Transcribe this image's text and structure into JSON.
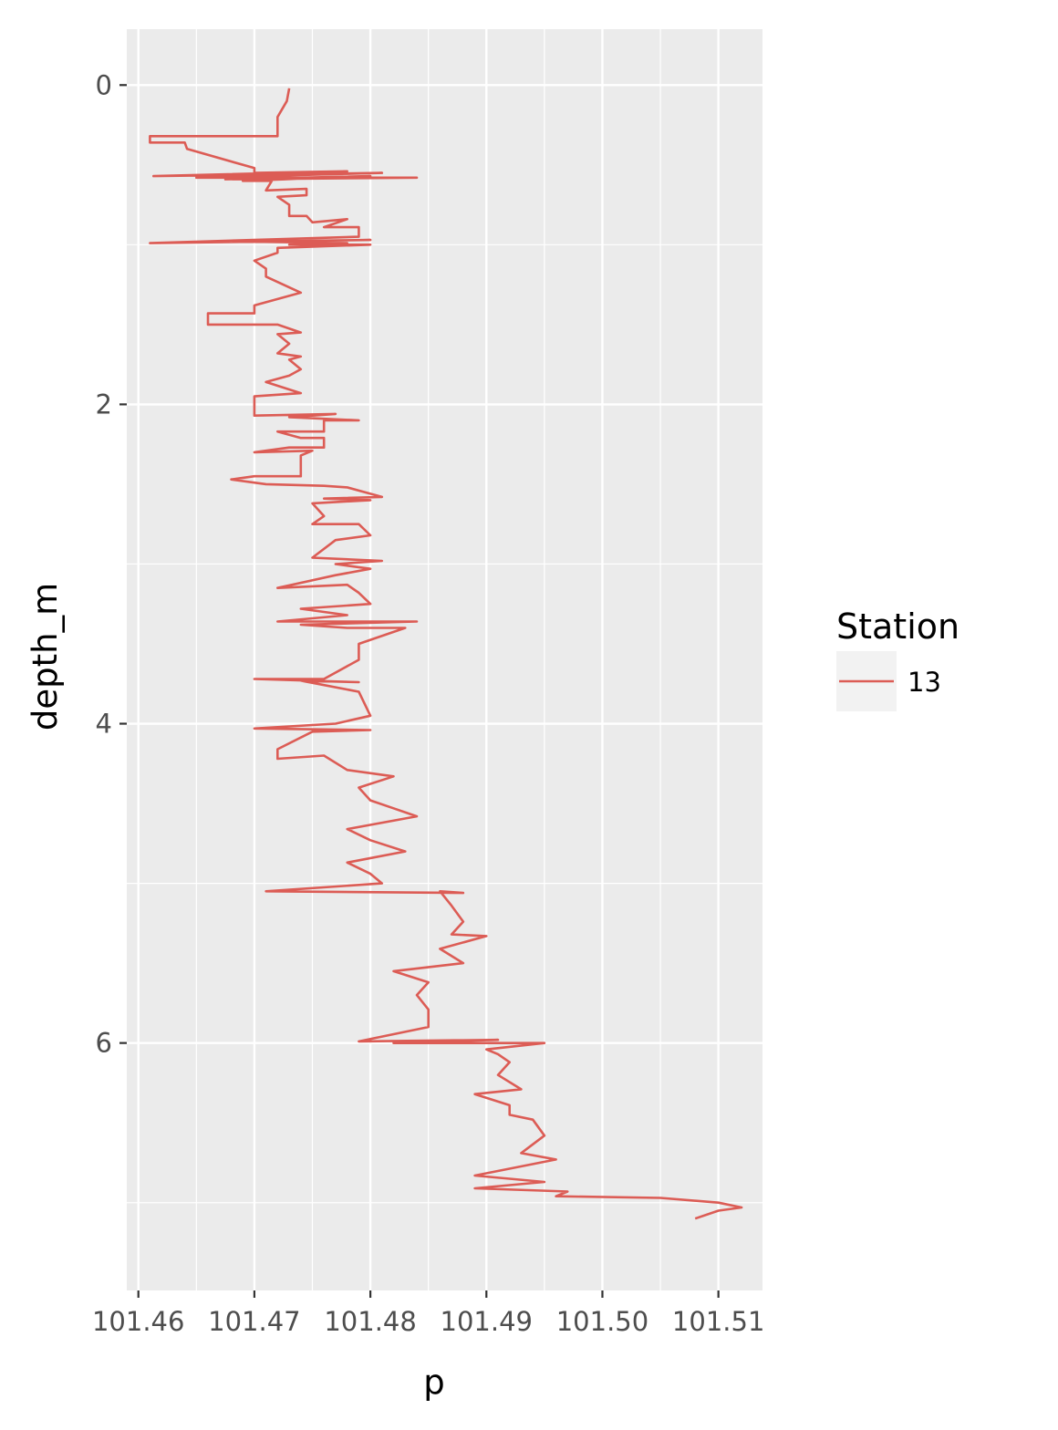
{
  "chart_data": {
    "type": "line",
    "title": "",
    "xlabel": "p",
    "ylabel": "depth_m",
    "xlim": [
      101.459,
      101.5138
    ],
    "ylim": [
      7.55,
      -0.35
    ],
    "y_reversed": true,
    "xticks": [
      101.46,
      101.47,
      101.48,
      101.49,
      101.5,
      101.51
    ],
    "xtick_labels": [
      "101.46",
      "101.47",
      "101.48",
      "101.49",
      "101.50",
      "101.51"
    ],
    "yticks": [
      0,
      2,
      4,
      6
    ],
    "ytick_labels": [
      "0",
      "2",
      "4",
      "6"
    ],
    "grid": true,
    "legend": {
      "title": "Station",
      "position": "right"
    },
    "series": [
      {
        "name": "13",
        "color": "#dc5c55",
        "points": [
          [
            101.473,
            0.02
          ],
          [
            101.4728,
            0.1
          ],
          [
            101.472,
            0.2
          ],
          [
            101.472,
            0.32
          ],
          [
            101.461,
            0.32
          ],
          [
            101.461,
            0.36
          ],
          [
            101.464,
            0.36
          ],
          [
            101.4642,
            0.4
          ],
          [
            101.47,
            0.52
          ],
          [
            101.47,
            0.55
          ],
          [
            101.478,
            0.54
          ],
          [
            101.4613,
            0.57
          ],
          [
            101.481,
            0.55
          ],
          [
            101.465,
            0.58
          ],
          [
            101.484,
            0.58
          ],
          [
            101.4675,
            0.59
          ],
          [
            101.48,
            0.57
          ],
          [
            101.469,
            0.6
          ],
          [
            101.4715,
            0.6
          ],
          [
            101.471,
            0.66
          ],
          [
            101.4745,
            0.65
          ],
          [
            101.4745,
            0.69
          ],
          [
            101.472,
            0.7
          ],
          [
            101.473,
            0.75
          ],
          [
            101.473,
            0.82
          ],
          [
            101.4745,
            0.82
          ],
          [
            101.475,
            0.86
          ],
          [
            101.478,
            0.84
          ],
          [
            101.476,
            0.89
          ],
          [
            101.479,
            0.89
          ],
          [
            101.479,
            0.95
          ],
          [
            101.461,
            0.99
          ],
          [
            101.48,
            0.97
          ],
          [
            101.469,
            0.98
          ],
          [
            101.478,
            0.99
          ],
          [
            101.473,
            1.0
          ],
          [
            101.48,
            1.0
          ],
          [
            101.472,
            1.02
          ],
          [
            101.472,
            1.05
          ],
          [
            101.47,
            1.1
          ],
          [
            101.471,
            1.15
          ],
          [
            101.471,
            1.2
          ],
          [
            101.474,
            1.3
          ],
          [
            101.47,
            1.38
          ],
          [
            101.47,
            1.43
          ],
          [
            101.466,
            1.43
          ],
          [
            101.466,
            1.5
          ],
          [
            101.472,
            1.5
          ],
          [
            101.474,
            1.55
          ],
          [
            101.472,
            1.56
          ],
          [
            101.473,
            1.62
          ],
          [
            101.472,
            1.68
          ],
          [
            101.474,
            1.7
          ],
          [
            101.473,
            1.72
          ],
          [
            101.474,
            1.78
          ],
          [
            101.473,
            1.82
          ],
          [
            101.471,
            1.86
          ],
          [
            101.474,
            1.93
          ],
          [
            101.47,
            1.95
          ],
          [
            101.47,
            2.07
          ],
          [
            101.477,
            2.06
          ],
          [
            101.473,
            2.08
          ],
          [
            101.479,
            2.1
          ],
          [
            101.476,
            2.1
          ],
          [
            101.476,
            2.17
          ],
          [
            101.472,
            2.17
          ],
          [
            101.474,
            2.21
          ],
          [
            101.476,
            2.21
          ],
          [
            101.476,
            2.27
          ],
          [
            101.473,
            2.27
          ],
          [
            101.47,
            2.3
          ],
          [
            101.475,
            2.29
          ],
          [
            101.474,
            2.32
          ],
          [
            101.474,
            2.45
          ],
          [
            101.47,
            2.45
          ],
          [
            101.468,
            2.47
          ],
          [
            101.471,
            2.5
          ],
          [
            101.476,
            2.51
          ],
          [
            101.478,
            2.52
          ],
          [
            101.481,
            2.58
          ],
          [
            101.476,
            2.59
          ],
          [
            101.48,
            2.6
          ],
          [
            101.475,
            2.62
          ],
          [
            101.476,
            2.7
          ],
          [
            101.475,
            2.75
          ],
          [
            101.479,
            2.75
          ],
          [
            101.48,
            2.82
          ],
          [
            101.477,
            2.85
          ],
          [
            101.475,
            2.96
          ],
          [
            101.481,
            2.98
          ],
          [
            101.477,
            3.0
          ],
          [
            101.48,
            3.03
          ],
          [
            101.477,
            3.07
          ],
          [
            101.472,
            3.15
          ],
          [
            101.478,
            3.13
          ],
          [
            101.479,
            3.18
          ],
          [
            101.48,
            3.25
          ],
          [
            101.474,
            3.28
          ],
          [
            101.478,
            3.32
          ],
          [
            101.472,
            3.36
          ],
          [
            101.484,
            3.36
          ],
          [
            101.474,
            3.38
          ],
          [
            101.478,
            3.4
          ],
          [
            101.483,
            3.4
          ],
          [
            101.479,
            3.5
          ],
          [
            101.479,
            3.6
          ],
          [
            101.476,
            3.72
          ],
          [
            101.47,
            3.72
          ],
          [
            101.479,
            3.74
          ],
          [
            101.474,
            3.73
          ],
          [
            101.479,
            3.8
          ],
          [
            101.48,
            3.95
          ],
          [
            101.477,
            4.0
          ],
          [
            101.47,
            4.03
          ],
          [
            101.48,
            4.04
          ],
          [
            101.475,
            4.05
          ],
          [
            101.472,
            4.16
          ],
          [
            101.472,
            4.22
          ],
          [
            101.476,
            4.2
          ],
          [
            101.478,
            4.29
          ],
          [
            101.482,
            4.33
          ],
          [
            101.479,
            4.4
          ],
          [
            101.48,
            4.48
          ],
          [
            101.482,
            4.53
          ],
          [
            101.484,
            4.58
          ],
          [
            101.478,
            4.66
          ],
          [
            101.48,
            4.73
          ],
          [
            101.483,
            4.8
          ],
          [
            101.478,
            4.87
          ],
          [
            101.48,
            4.94
          ],
          [
            101.481,
            5.0
          ],
          [
            101.471,
            5.05
          ],
          [
            101.488,
            5.06
          ],
          [
            101.486,
            5.05
          ],
          [
            101.487,
            5.14
          ],
          [
            101.488,
            5.24
          ],
          [
            101.487,
            5.32
          ],
          [
            101.49,
            5.33
          ],
          [
            101.486,
            5.41
          ],
          [
            101.488,
            5.5
          ],
          [
            101.482,
            5.55
          ],
          [
            101.485,
            5.62
          ],
          [
            101.484,
            5.7
          ],
          [
            101.485,
            5.79
          ],
          [
            101.485,
            5.9
          ],
          [
            101.479,
            5.99
          ],
          [
            101.491,
            5.98
          ],
          [
            101.482,
            6.0
          ],
          [
            101.495,
            6.0
          ],
          [
            101.49,
            6.04
          ],
          [
            101.491,
            6.07
          ],
          [
            101.492,
            6.12
          ],
          [
            101.491,
            6.2
          ],
          [
            101.493,
            6.29
          ],
          [
            101.489,
            6.32
          ],
          [
            101.492,
            6.39
          ],
          [
            101.492,
            6.45
          ],
          [
            101.494,
            6.48
          ],
          [
            101.495,
            6.58
          ],
          [
            101.493,
            6.69
          ],
          [
            101.496,
            6.73
          ],
          [
            101.489,
            6.83
          ],
          [
            101.495,
            6.87
          ],
          [
            101.489,
            6.91
          ],
          [
            101.497,
            6.93
          ],
          [
            101.496,
            6.96
          ],
          [
            101.505,
            6.97
          ],
          [
            101.51,
            7.0
          ],
          [
            101.512,
            7.03
          ],
          [
            101.51,
            7.05
          ],
          [
            101.508,
            7.1
          ]
        ]
      }
    ]
  }
}
